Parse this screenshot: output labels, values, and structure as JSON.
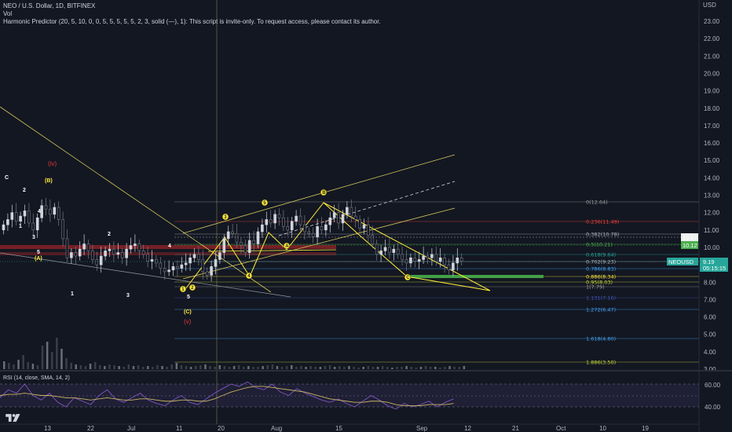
{
  "header": {
    "title": "NEO / U.S. Dollar, 1D, BITFINEX",
    "vol": "Vol",
    "indicator": "Harmonic Predictor (20, 5, 10, 0, 0, 5, 5, 5, 5, 5, 2, 3, solid (—), 1): This script is invite-only. To request access, please contact its author."
  },
  "price_axis": {
    "currency": "USD",
    "ticks": [
      "23.00",
      "22.00",
      "21.00",
      "20.00",
      "19.00",
      "18.00",
      "17.00",
      "16.00",
      "15.00",
      "14.00",
      "13.00",
      "12.00",
      "11.00",
      "10.00",
      "9.00",
      "8.00",
      "7.00",
      "6.00",
      "5.00",
      "4.00",
      "3.00"
    ],
    "tags": [
      {
        "text": "10.57",
        "color": "#eeeeee",
        "text_color": "#131722"
      },
      {
        "text": "10.12",
        "color": "#4caf50",
        "text_color": "#ffffff"
      }
    ],
    "symbol_tag": {
      "symbol": "NEOUSD",
      "price": "9.19",
      "countdown": "05:15:15",
      "color": "#26a69a"
    }
  },
  "time_axis": {
    "labels": [
      "13",
      "22",
      "Jul",
      "11",
      "20",
      "Aug",
      "15",
      "Sep",
      "12",
      "21",
      "Oct",
      "10",
      "19"
    ]
  },
  "fib_levels": [
    {
      "label": "0(12.64)",
      "color": "#9e9e9e"
    },
    {
      "label": "0.236(11.49)",
      "color": "#f44336"
    },
    {
      "label": "0.382(10.78)",
      "color": "#b2b5be"
    },
    {
      "label": "0.5(10.21)",
      "color": "#4caf50"
    },
    {
      "label": "0.618(9.64)",
      "color": "#26a69a"
    },
    {
      "label": "0.702(9.23)",
      "color": "#b2b5be"
    },
    {
      "label": "0.786(8.83)",
      "color": "#42a5f5"
    },
    {
      "label": "0.886(8.34)",
      "color": "#ffeb3b"
    },
    {
      "label": "0.95(8.03)",
      "color": "#cddc39"
    },
    {
      "label": "1(7.79)",
      "color": "#9e9e9e"
    },
    {
      "label": "1.131(7.16)",
      "color": "#3f51b5"
    },
    {
      "label": "1.272(6.47)",
      "color": "#42a5f5"
    },
    {
      "label": "1.618(4.80)",
      "color": "#42a5f5"
    },
    {
      "label": "1.886(3.50)",
      "color": "#cddc39"
    }
  ],
  "waves": {
    "white": [
      "C",
      "2",
      "1",
      "3",
      "4",
      "5",
      "1",
      "2",
      "3",
      "4",
      "5"
    ],
    "yellow_paren": [
      "(B)",
      "(A)",
      "(C)"
    ],
    "red": [
      "(iv)",
      "(v)"
    ],
    "harmonic_points": [
      "B",
      "A",
      "C",
      "1",
      "2",
      "3",
      "4",
      "5"
    ]
  },
  "rsi": {
    "label": "RSI (14, close, SMA, 14, 2)",
    "ticks": [
      "60.00",
      "40.00"
    ]
  },
  "colors": {
    "background": "#131722",
    "up_candle": "#d1d4dc",
    "down_candle": "#787b86",
    "yellow": "#ffeb3b",
    "rsi_bg": "#2a2240"
  }
}
